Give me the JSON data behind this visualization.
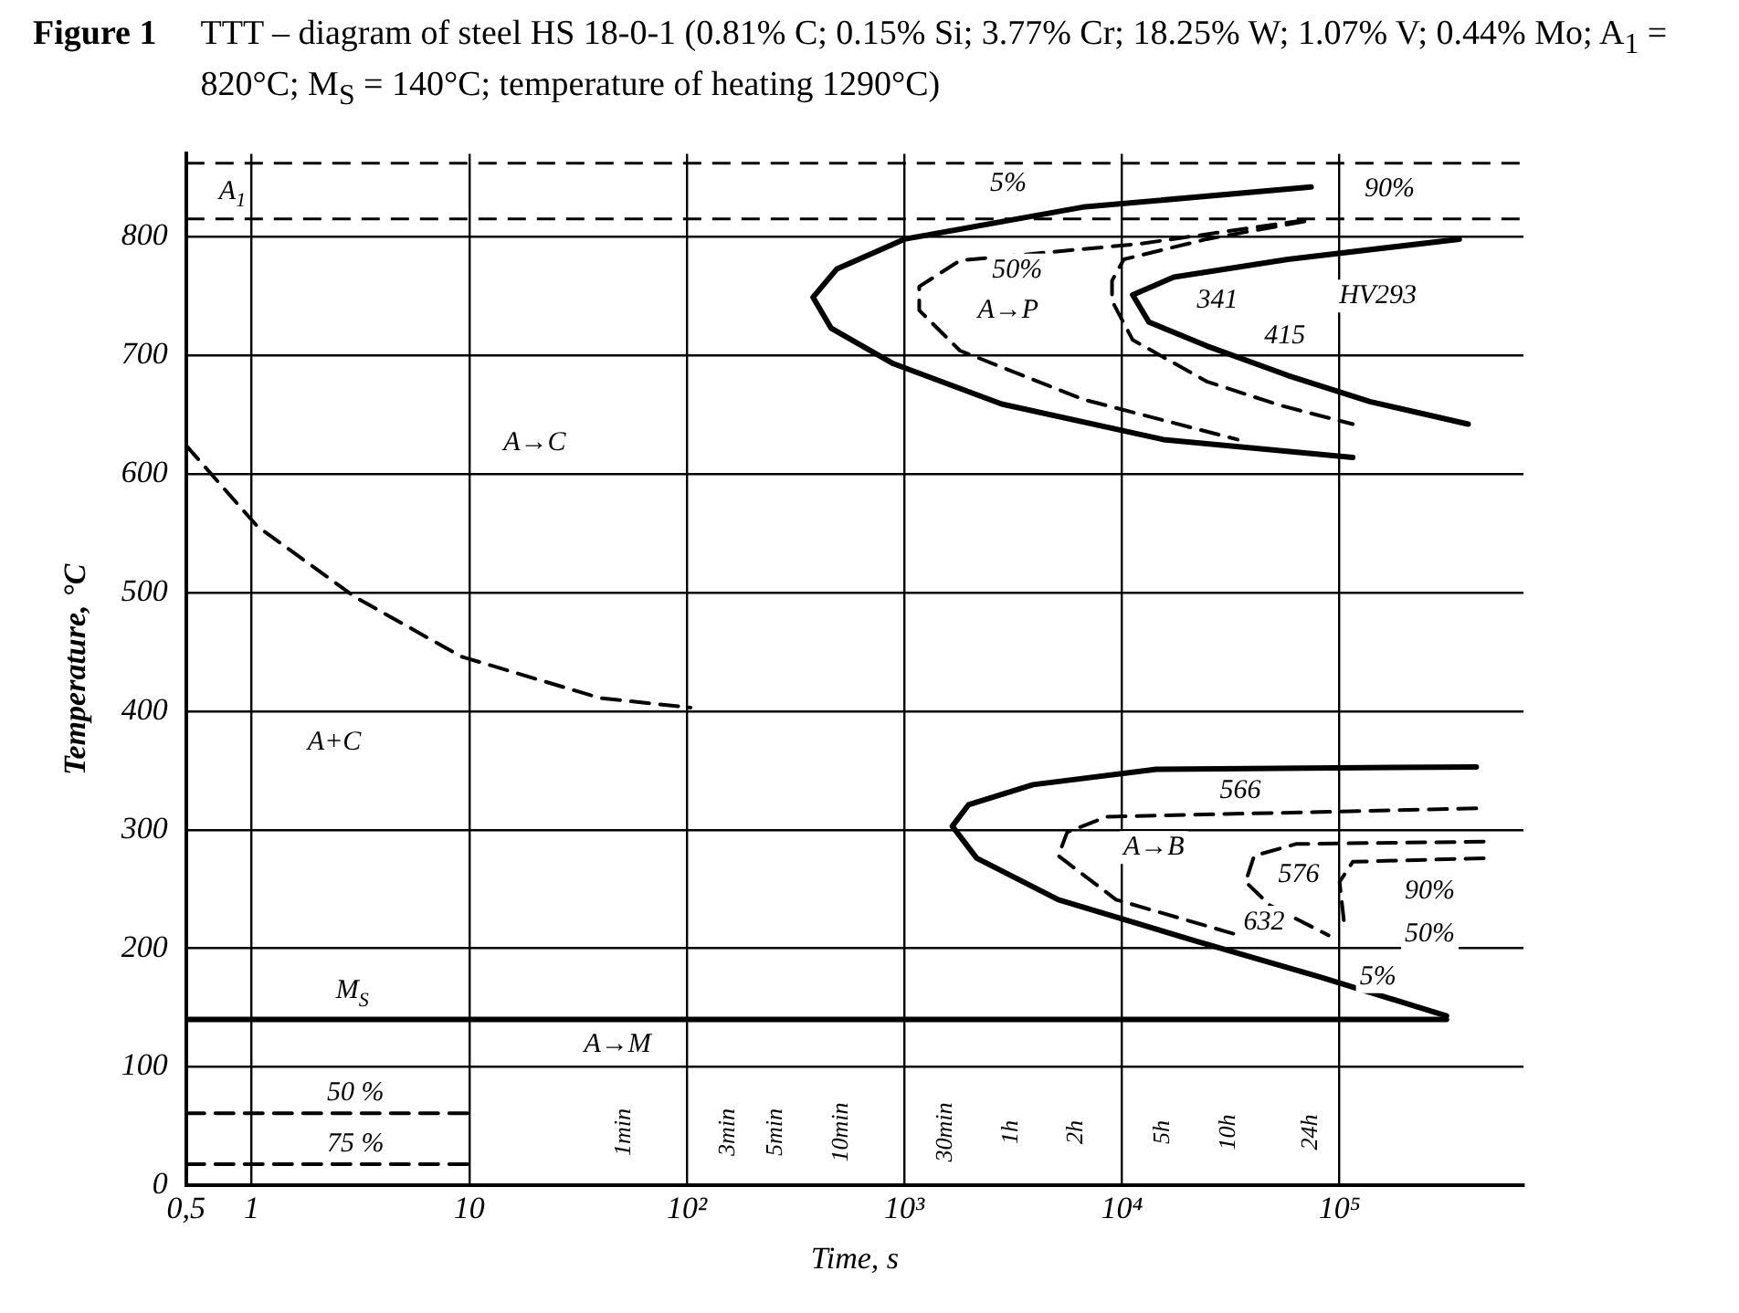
{
  "chart_data": {
    "type": "line",
    "title": "Figure 1",
    "subtitle": "TTT – diagram of steel HS 18-0-1 (0.81% C; 0.15% Si; 3.77% Cr; 18.25% W; 1.07% V; 0.44% Mo; A$_{1}$ = 820°C; M$_{S}$ = 140°C; temperature of heating 1290°C)",
    "xlabel": "Time, s",
    "ylabel": "Temperature, °C",
    "log": "x",
    "grid": true,
    "legend": false,
    "xlim": [
      0.5,
      700000
    ],
    "ylim": [
      0,
      870
    ],
    "xticks": [
      {
        "value": 0.5,
        "label": "0,5"
      },
      1,
      10,
      {
        "value": 100,
        "label": "10²"
      },
      {
        "value": 1000,
        "label": "10³"
      },
      {
        "value": 10000,
        "label": "10⁴"
      },
      {
        "value": 100000,
        "label": "10⁵"
      }
    ],
    "yticks": [
      0,
      100,
      200,
      300,
      400,
      500,
      600,
      700,
      800
    ],
    "ref_lines": [
      {
        "axis": "y",
        "value": 815,
        "label": "A$_{1}$",
        "line_style": "dashed"
      },
      {
        "axis": "y",
        "value": 862,
        "label": null,
        "line_style": "dashed"
      }
    ],
    "series": [
      {
        "color": "#000000",
        "line_style": "dashed",
        "x": [
          0.5,
          1.06,
          3.0,
          9.2,
          40,
          104
        ],
        "values": [
          624,
          556,
          496,
          446,
          411,
          403
        ]
      },
      {
        "color": "#000000",
        "line_style": "solid",
        "x": [
          74000,
          6600,
          1000,
          490,
          380,
          460,
          890,
          2800,
          15500,
          115000
        ],
        "values": [
          842,
          825,
          798,
          773,
          749,
          723,
          693,
          659,
          629,
          614
        ]
      },
      {
        "color": "#000000",
        "line_style": "dashed",
        "x": [
          69000,
          12000,
          1800,
          1170,
          1170,
          1800,
          6600,
          34000
        ],
        "values": [
          814,
          794,
          780,
          758,
          738,
          704,
          663,
          629
        ]
      },
      {
        "color": "#000000",
        "line_style": "dashed",
        "x": [
          69000,
          24500,
          10200,
          9000,
          9000,
          11200,
          24500,
          53000,
          115000
        ],
        "values": [
          813,
          798,
          781,
          763,
          746,
          713,
          678,
          658,
          642
        ]
      },
      {
        "color": "#000000",
        "line_style": "solid",
        "x": [
          355000,
          58000,
          17300,
          11200,
          13300,
          24500,
          58000,
          138000,
          390000
        ],
        "values": [
          798,
          781,
          766,
          751,
          728,
          708,
          683,
          661,
          642
        ]
      },
      {
        "color": "#000000",
        "line_style": "solid",
        "x": [
          425000,
          14400,
          3900,
          1970,
          1660,
          2150,
          5100,
          22000,
          81000,
          310000
        ],
        "values": [
          353,
          351,
          338,
          321,
          303,
          276,
          241,
          206,
          176,
          143
        ]
      },
      {
        "color": "#000000",
        "line_style": "dashed",
        "x": [
          425000,
          8500,
          5600,
          5100,
          9400,
          34500
        ],
        "values": [
          318,
          311,
          298,
          278,
          241,
          211
        ]
      },
      {
        "color": "#000000",
        "line_style": "dashed",
        "x": [
          460000,
          63000,
          40500,
          37000,
          48000,
          89000
        ],
        "values": [
          290,
          288,
          278,
          256,
          236,
          211
        ]
      },
      {
        "color": "#000000",
        "line_style": "dashed",
        "x": [
          460000,
          115000,
          100000,
          105000
        ],
        "values": [
          276,
          273,
          256,
          221
        ]
      },
      {
        "color": "#000000",
        "line_style": "solid",
        "x": [
          0.5,
          310000
        ],
        "values": [
          140,
          140
        ]
      },
      {
        "color": "#000000",
        "line_style": "dashed",
        "x": [
          0.5,
          10
        ],
        "values": [
          61,
          61
        ]
      },
      {
        "color": "#000000",
        "line_style": "dashed",
        "x": [
          0.5,
          10
        ],
        "values": [
          18,
          18
        ]
      }
    ],
    "annotations": [
      "A→C",
      "A+C",
      "A→P",
      "A→B",
      "A→M",
      "M$_{S}$",
      "5%",
      "50%",
      "90%",
      "HV293",
      "341",
      "415",
      "566",
      "576",
      "632",
      "90%",
      "50%",
      "5%",
      "50 %",
      "75 %",
      "1min",
      "3min",
      "5min",
      "10min",
      "30min",
      "1h",
      "2h",
      "5h",
      "10h",
      "24h"
    ]
  }
}
